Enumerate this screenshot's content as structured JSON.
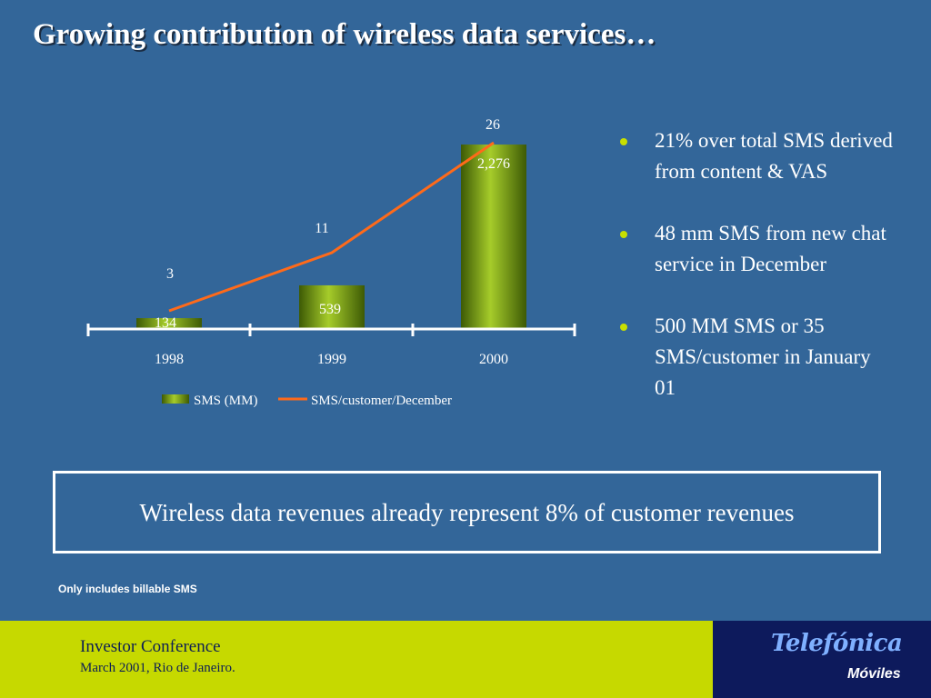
{
  "title": "Growing contribution of wireless data services…",
  "chart_data": {
    "type": "bar",
    "categories": [
      "1998",
      "1999",
      "2000"
    ],
    "series": [
      {
        "name": "SMS (MM)",
        "type": "bar",
        "values": [
          134,
          539,
          2276
        ],
        "labels": [
          "134",
          "539",
          "2,276"
        ],
        "color": "#6b8e0a"
      },
      {
        "name": "SMS/customer/December",
        "type": "line",
        "values": [
          3,
          11,
          26
        ],
        "labels": [
          "3",
          "11",
          "26"
        ],
        "color": "#ff6a1a"
      }
    ],
    "xlabel": "",
    "ylabel": ""
  },
  "bullets": [
    "21% over total SMS derived from content & VAS",
    "48 mm SMS from new chat service in December",
    "500 MM SMS or 35 SMS/customer in January 01"
  ],
  "callout": "Wireless data revenues already represent 8% of customer revenues",
  "footnote": "Only includes billable SMS",
  "footer": {
    "title": "Investor Conference",
    "subtitle": "March 2001, Rio de Janeiro."
  },
  "logo": {
    "main": "Telefónica",
    "sub": "Móviles"
  },
  "colors": {
    "background": "#336699",
    "footer_green": "#c6d900",
    "footer_navy": "#0d1a5c",
    "bullet_dot": "#c8df00"
  }
}
